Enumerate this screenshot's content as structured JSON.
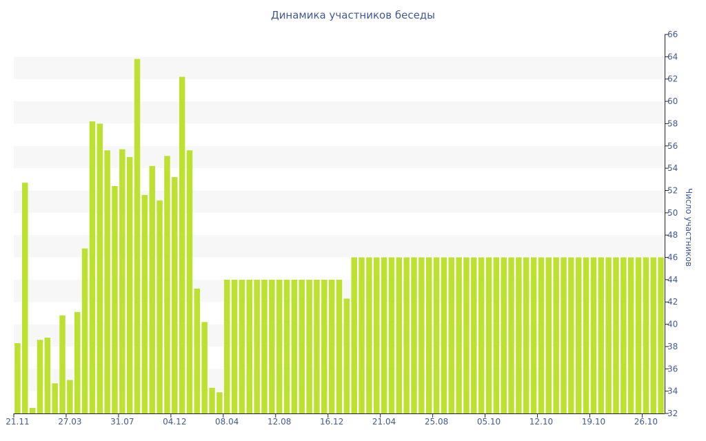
{
  "chart_data": {
    "type": "bar",
    "title": "Динамика участников беседы",
    "ylabel": "Число участников",
    "xlabel": "",
    "ylim": [
      32,
      66
    ],
    "ytick_step": 2,
    "grid": true,
    "bar_color": "#bde130",
    "band_color": "#f7f7f7",
    "text_color": "#3f5a93",
    "axis_color": "#222222",
    "x_tick_labels": [
      {
        "index": 0,
        "label": "21.11"
      },
      {
        "index": 7,
        "label": "27.03"
      },
      {
        "index": 14,
        "label": "31.07"
      },
      {
        "index": 21,
        "label": "04.12"
      },
      {
        "index": 28,
        "label": "08.04"
      },
      {
        "index": 35,
        "label": "12.08"
      },
      {
        "index": 42,
        "label": "16.12"
      },
      {
        "index": 49,
        "label": "21.04"
      },
      {
        "index": 56,
        "label": "25.08"
      },
      {
        "index": 63,
        "label": "05.10"
      },
      {
        "index": 70,
        "label": "12.10"
      },
      {
        "index": 77,
        "label": "19.10"
      },
      {
        "index": 84,
        "label": "26.10"
      }
    ],
    "values": [
      38.3,
      52.7,
      32.5,
      38.6,
      38.8,
      34.7,
      40.8,
      35.0,
      41.1,
      46.8,
      58.2,
      58.0,
      55.6,
      52.4,
      55.7,
      55.0,
      63.8,
      51.6,
      54.2,
      51.1,
      55.1,
      53.2,
      62.2,
      55.6,
      43.2,
      40.2,
      34.3,
      33.9,
      44.0,
      44.0,
      44.0,
      44.0,
      44.0,
      44.0,
      44.0,
      44.0,
      44.0,
      44.0,
      44.0,
      44.0,
      44.0,
      44.0,
      44.0,
      44.0,
      42.3,
      46.0,
      46.0,
      46.0,
      46.0,
      46.0,
      46.0,
      46.0,
      46.0,
      46.0,
      46.0,
      46.0,
      46.0,
      46.0,
      46.0,
      46.0,
      46.0,
      46.0,
      46.0,
      46.0,
      46.0,
      46.0,
      46.0,
      46.0,
      46.0,
      46.0,
      46.0,
      46.0,
      46.0,
      46.0,
      46.0,
      46.0,
      46.0,
      46.0,
      46.0,
      46.0,
      46.0,
      46.0,
      46.0,
      46.0,
      46.0,
      46.0,
      46.0
    ]
  }
}
